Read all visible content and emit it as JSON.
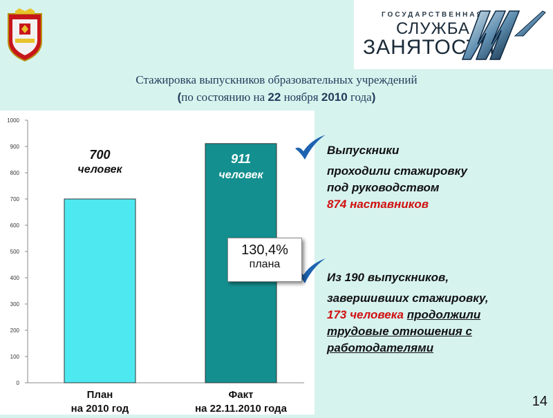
{
  "logo": {
    "line1": "ГОСУДАРСТВЕННАЯ",
    "line2": "СЛУЖБА",
    "line3": "ЗАНЯТОСТИ"
  },
  "header": {
    "title": "Стажировка выпускников образовательных учреждений",
    "subtitle_open": "(",
    "subtitle_pre": "по состоянию на ",
    "subtitle_day": "22",
    "subtitle_mid": " ноября ",
    "subtitle_year": "2010",
    "subtitle_post": " года",
    "subtitle_close": ")"
  },
  "chart_data": {
    "type": "bar",
    "categories": [
      "План\nна 2010 год",
      "Факт\nна 22.11.2010 года"
    ],
    "category_lines": [
      [
        "План",
        "на 2010 год"
      ],
      [
        "Факт",
        "на 22.11.2010 года"
      ]
    ],
    "values": [
      700,
      911
    ],
    "value_labels": [
      [
        "700",
        "человек"
      ],
      [
        "911",
        "человек"
      ]
    ],
    "ylim": [
      0,
      1000
    ],
    "yticks": [
      0,
      100,
      200,
      300,
      400,
      500,
      600,
      700,
      800,
      900,
      1000
    ],
    "grid": false,
    "colors": [
      "#4ee8f0",
      "#148f8f"
    ]
  },
  "badge": {
    "value": "130,4%",
    "label": "плана"
  },
  "facts": {
    "block1": {
      "line1": "Выпускники",
      "line2": "проходили стажировку",
      "line3": "под руководством",
      "line4": "874 наставников"
    },
    "block2": {
      "line1": "Из 190 выпускников,",
      "line2": "завершивших стажировку,",
      "line3_red": "173 человека",
      "line3_rest": "продолжили",
      "line4": "трудовые отношения с",
      "line5": "работодателями"
    }
  },
  "page_number": "14",
  "colors": {
    "background": "#d7f3ee",
    "accent_red": "#d01010",
    "check_blue": "#1e63b0"
  },
  "icons": {
    "emblem": "coat-of-arms-icon",
    "logo": "employment-service-logo-icon",
    "check": "checkmark-icon"
  }
}
